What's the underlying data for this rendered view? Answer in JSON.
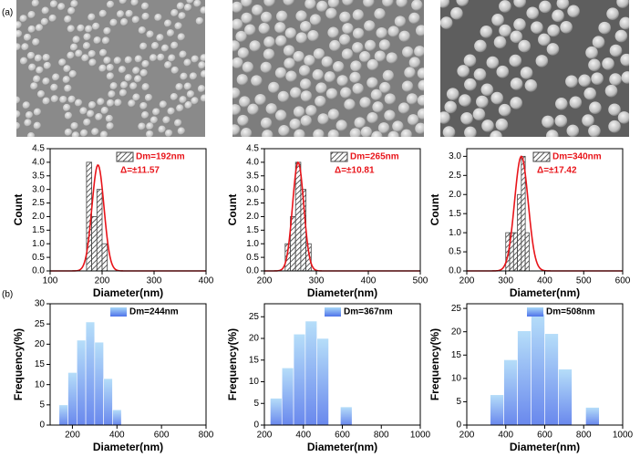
{
  "panel_labels": [
    "(a)",
    "(b)"
  ],
  "chart_data": [
    {
      "type": "histogram",
      "x_label": "Diameter(nm)",
      "y_label": "Count",
      "style": "hatch",
      "color": "#444444",
      "bins": [
        170,
        180,
        190,
        200,
        210
      ],
      "counts": [
        4,
        2,
        3,
        1
      ],
      "xlim": [
        100,
        400
      ],
      "xticks": [
        100,
        200,
        300,
        400
      ],
      "ylim": [
        0,
        4.5
      ],
      "yticks": [
        {
          "value": 0,
          "label": "0.0"
        },
        0.5,
        {
          "value": 1,
          "label": "1.0"
        },
        1.5,
        {
          "value": 2,
          "label": "2.0"
        },
        2.5,
        {
          "value": 3,
          "label": "3.0"
        },
        3.5,
        {
          "value": 4,
          "label": "4.0"
        },
        4.5
      ],
      "annotations": [
        "Dm=192nm",
        "Δ=±11.57"
      ],
      "fit": {
        "mean": 192,
        "sigma": 11.57,
        "peak": 3.9,
        "color": "#e8141a"
      }
    },
    {
      "type": "histogram",
      "x_label": "Diameter(nm)",
      "y_label": "Count",
      "style": "hatch",
      "color": "#444444",
      "bins": [
        240,
        250,
        260,
        270,
        280,
        290
      ],
      "counts": [
        1,
        2,
        4,
        3,
        1
      ],
      "xlim": [
        200,
        500
      ],
      "xticks": [
        200,
        300,
        400,
        500
      ],
      "ylim": [
        0,
        4.5
      ],
      "yticks": [
        {
          "value": 0,
          "label": "0.0"
        },
        0.5,
        {
          "value": 1,
          "label": "1.0"
        },
        1.5,
        {
          "value": 2,
          "label": "2.0"
        },
        2.5,
        {
          "value": 3,
          "label": "3.0"
        },
        3.5,
        {
          "value": 4,
          "label": "4.0"
        },
        4.5
      ],
      "annotations": [
        "Dm=265nm",
        "Δ=±10.81"
      ],
      "fit": {
        "mean": 265,
        "sigma": 10.81,
        "peak": 4.0,
        "color": "#e8141a"
      }
    },
    {
      "type": "histogram",
      "x_label": "Diameter(nm)",
      "y_label": "Count",
      "style": "hatch",
      "color": "#444444",
      "bins": [
        300,
        310,
        320,
        330,
        340,
        350,
        360
      ],
      "counts": [
        1,
        1,
        1,
        2,
        3,
        1
      ],
      "xlim": [
        200,
        600
      ],
      "xticks": [
        200,
        300,
        400,
        500,
        600
      ],
      "ylim": [
        0,
        3.2
      ],
      "yticks": [
        {
          "value": 0,
          "label": "0.0"
        },
        0.5,
        {
          "value": 1,
          "label": "1.0"
        },
        1.5,
        {
          "value": 2,
          "label": "2.0"
        },
        2.5,
        {
          "value": 3,
          "label": "3.0"
        }
      ],
      "annotations": [
        "Dm=340nm",
        "Δ=±17.42"
      ],
      "fit": {
        "mean": 340,
        "sigma": 17.42,
        "peak": 3.0,
        "color": "#e8141a"
      }
    },
    {
      "type": "histogram",
      "x_label": "Diameter(nm)",
      "y_label": "Frequency(%)",
      "style": "gradient",
      "color": "#5b86ef",
      "bins": [
        140,
        180,
        220,
        260,
        300,
        340,
        380,
        420
      ],
      "counts": [
        5,
        13,
        21,
        25.5,
        20.5,
        11.5,
        3.8
      ],
      "xlim": [
        100,
        800
      ],
      "xticks": [
        200,
        400,
        600,
        800
      ],
      "ylim": [
        0,
        30
      ],
      "yticks": [
        0,
        5,
        10,
        15,
        20,
        25,
        30
      ],
      "annotations": [
        "Dm=244nm"
      ]
    },
    {
      "type": "histogram",
      "x_label": "Diameter(nm)",
      "y_label": "Frequency(%)",
      "style": "gradient",
      "color": "#5b86ef",
      "bins": [
        230,
        290,
        350,
        410,
        470,
        530,
        590,
        650
      ],
      "counts": [
        6.2,
        13.2,
        21,
        24,
        20,
        0,
        4.2
      ],
      "xlim": [
        200,
        1000
      ],
      "xticks": [
        200,
        400,
        600,
        800,
        1000
      ],
      "ylim": [
        0,
        28
      ],
      "yticks": [
        0,
        5,
        10,
        15,
        20,
        25
      ],
      "annotations": [
        "Dm=367nm"
      ]
    },
    {
      "type": "histogram",
      "x_label": "Diameter(nm)",
      "y_label": "Frequency(%)",
      "style": "gradient",
      "color": "#5b86ef",
      "bins": [
        320,
        390,
        460,
        530,
        600,
        670,
        740,
        810,
        880
      ],
      "counts": [
        6.5,
        14,
        20.2,
        23.8,
        19.6,
        12,
        0,
        3.8
      ],
      "xlim": [
        200,
        1000
      ],
      "xticks": [
        200,
        400,
        600,
        800,
        1000
      ],
      "ylim": [
        0,
        26
      ],
      "yticks": [
        0,
        5,
        10,
        15,
        20,
        25
      ],
      "annotations": [
        "Dm=508nm"
      ]
    }
  ]
}
